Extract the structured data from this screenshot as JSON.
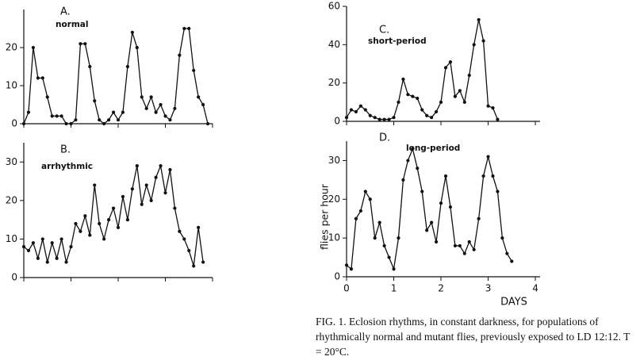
{
  "chart_data": [
    {
      "type": "line",
      "title": "A.",
      "subtitle": "normal",
      "x": [
        0,
        0.1,
        0.2,
        0.3,
        0.4,
        0.5,
        0.6,
        0.7,
        0.8,
        0.9,
        1.0,
        1.1,
        1.2,
        1.3,
        1.4,
        1.5,
        1.6,
        1.7,
        1.8,
        1.9,
        2.0,
        2.1,
        2.2,
        2.3,
        2.4,
        2.5,
        2.6,
        2.7,
        2.8,
        2.9,
        3.0,
        3.1,
        3.2,
        3.3,
        3.4,
        3.5,
        3.6,
        3.7,
        3.8,
        3.9
      ],
      "values": [
        0,
        3,
        20,
        12,
        12,
        7,
        2,
        2,
        2,
        0,
        0,
        1,
        21,
        21,
        15,
        6,
        1,
        0,
        1,
        3,
        1,
        3,
        15,
        24,
        20,
        7,
        4,
        7,
        3,
        5,
        2,
        1,
        4,
        18,
        25,
        25,
        14,
        7,
        5,
        0
      ],
      "xlim": [
        0,
        4
      ],
      "xticks": [
        0,
        1,
        2,
        3,
        4
      ],
      "xtick_labels": false,
      "ylim": [
        0,
        30
      ],
      "yticks": [
        0,
        10,
        20
      ],
      "color": "#111111"
    },
    {
      "type": "line",
      "title": "B.",
      "subtitle": "arrhythmic",
      "x": [
        0,
        0.1,
        0.2,
        0.3,
        0.4,
        0.5,
        0.6,
        0.7,
        0.8,
        0.9,
        1.0,
        1.1,
        1.2,
        1.3,
        1.4,
        1.5,
        1.6,
        1.7,
        1.8,
        1.9,
        2.0,
        2.1,
        2.2,
        2.3,
        2.4,
        2.5,
        2.6,
        2.7,
        2.8,
        2.9,
        3.0,
        3.1,
        3.2,
        3.3,
        3.4,
        3.5,
        3.6,
        3.7,
        3.8
      ],
      "values": [
        8,
        7,
        9,
        5,
        10,
        4,
        9,
        5,
        10,
        4,
        8,
        14,
        12,
        16,
        11,
        24,
        14,
        10,
        15,
        18,
        13,
        21,
        15,
        23,
        29,
        19,
        24,
        20,
        26,
        29,
        22,
        28,
        18,
        12,
        10,
        7,
        3,
        13,
        4
      ],
      "xlim": [
        0,
        4
      ],
      "xticks": [
        0,
        1,
        2,
        3,
        4
      ],
      "xtick_labels": false,
      "ylim": [
        0,
        35
      ],
      "yticks": [
        0,
        10,
        20,
        30
      ],
      "color": "#111111"
    },
    {
      "type": "line",
      "title": "C.",
      "subtitle": "short-period",
      "x": [
        0,
        0.1,
        0.2,
        0.3,
        0.4,
        0.5,
        0.6,
        0.7,
        0.8,
        0.9,
        1.0,
        1.1,
        1.2,
        1.3,
        1.4,
        1.5,
        1.6,
        1.7,
        1.8,
        1.9,
        2.0,
        2.1,
        2.2,
        2.3,
        2.4,
        2.5,
        2.6,
        2.7,
        2.8,
        2.9,
        3.0,
        3.1,
        3.2
      ],
      "values": [
        2,
        6,
        5,
        8,
        6,
        3,
        2,
        1,
        1,
        1,
        2,
        10,
        22,
        14,
        13,
        12,
        6,
        3,
        2,
        5,
        10,
        28,
        31,
        13,
        16,
        10,
        24,
        40,
        53,
        42,
        8,
        7,
        1
      ],
      "xlim": [
        0,
        4.1
      ],
      "xticks": [
        0,
        1,
        2,
        3,
        4
      ],
      "xtick_labels": false,
      "ylim": [
        0,
        60
      ],
      "yticks": [
        0,
        20,
        40,
        60
      ],
      "color": "#111111"
    },
    {
      "type": "line",
      "title": "D.",
      "subtitle": "long-period",
      "xlabel": "DAYS",
      "ylabel": "flies per hour",
      "x": [
        0,
        0.1,
        0.2,
        0.3,
        0.4,
        0.5,
        0.6,
        0.7,
        0.8,
        0.9,
        1.0,
        1.1,
        1.2,
        1.3,
        1.4,
        1.5,
        1.6,
        1.7,
        1.8,
        1.9,
        2.0,
        2.1,
        2.2,
        2.3,
        2.4,
        2.5,
        2.6,
        2.7,
        2.8,
        2.9,
        3.0,
        3.1,
        3.2,
        3.3,
        3.4,
        3.5
      ],
      "values": [
        3,
        2,
        15,
        17,
        22,
        20,
        10,
        14,
        8,
        5,
        2,
        10,
        25,
        30,
        33,
        28,
        22,
        12,
        14,
        9,
        19,
        26,
        18,
        8,
        8,
        6,
        9,
        7,
        15,
        26,
        31,
        26,
        22,
        10,
        6,
        4
      ],
      "xlim": [
        0,
        4.1
      ],
      "xticks": [
        0,
        1,
        2,
        3,
        4
      ],
      "xtick_labels": true,
      "ylim": [
        0,
        35
      ],
      "yticks": [
        0,
        10,
        20,
        30
      ],
      "color": "#111111"
    }
  ],
  "caption": "FIG. 1.  Eclosion rhythms, in constant darkness, for populations of rhythmically normal and mutant flies, previously exposed to LD 12:12. T = 20°C."
}
